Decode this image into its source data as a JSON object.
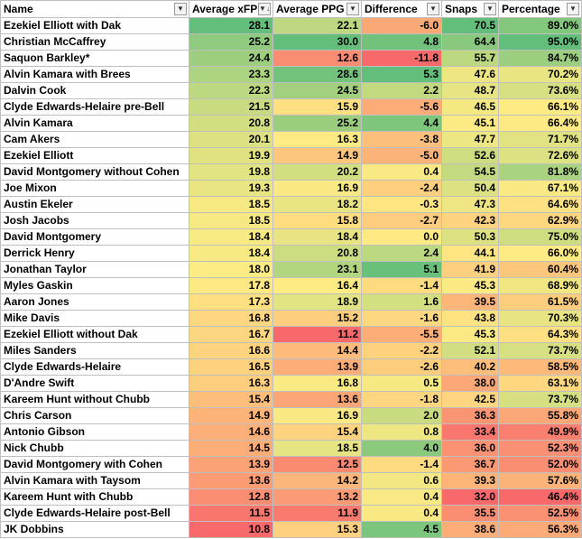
{
  "headers": [
    "Name",
    "Average xFP",
    "Average PPG",
    "Difference",
    "Snaps",
    "Percentage"
  ],
  "filter_icons": [
    "filter-dropdown-icon",
    "sort-descending-filter-icon",
    "filter-dropdown-icon",
    "filter-dropdown-icon",
    "filter-dropdown-icon",
    "filter-dropdown-icon"
  ],
  "color_scale": {
    "low": "#f8696b",
    "mid": "#ffeb84",
    "high": "#63be7b"
  },
  "rows": [
    {
      "name": "Ezekiel Elliott with Dak",
      "xfp": "28.1",
      "ppg": "22.1",
      "diff": "-6.0",
      "snaps": "70.5",
      "pct": "89.0%"
    },
    {
      "name": "Christian McCaffrey",
      "xfp": "25.2",
      "ppg": "30.0",
      "diff": "4.8",
      "snaps": "64.4",
      "pct": "95.0%"
    },
    {
      "name": "Saquon Barkley*",
      "xfp": "24.4",
      "ppg": "12.6",
      "diff": "-11.8",
      "snaps": "55.7",
      "pct": "84.7%"
    },
    {
      "name": "Alvin Kamara with Brees",
      "xfp": "23.3",
      "ppg": "28.6",
      "diff": "5.3",
      "snaps": "47.6",
      "pct": "70.2%"
    },
    {
      "name": "Dalvin Cook",
      "xfp": "22.3",
      "ppg": "24.5",
      "diff": "2.2",
      "snaps": "48.7",
      "pct": "73.6%"
    },
    {
      "name": "Clyde Edwards-Helaire pre-Bell",
      "xfp": "21.5",
      "ppg": "15.9",
      "diff": "-5.6",
      "snaps": "46.5",
      "pct": "66.1%"
    },
    {
      "name": "Alvin Kamara",
      "xfp": "20.8",
      "ppg": "25.2",
      "diff": "4.4",
      "snaps": "45.1",
      "pct": "66.4%"
    },
    {
      "name": "Cam Akers",
      "xfp": "20.1",
      "ppg": "16.3",
      "diff": "-3.8",
      "snaps": "47.7",
      "pct": "71.7%"
    },
    {
      "name": "Ezekiel Elliott",
      "xfp": "19.9",
      "ppg": "14.9",
      "diff": "-5.0",
      "snaps": "52.6",
      "pct": "72.6%"
    },
    {
      "name": "David Montgomery without Cohen",
      "xfp": "19.8",
      "ppg": "20.2",
      "diff": "0.4",
      "snaps": "54.5",
      "pct": "81.8%"
    },
    {
      "name": "Joe Mixon",
      "xfp": "19.3",
      "ppg": "16.9",
      "diff": "-2.4",
      "snaps": "50.4",
      "pct": "67.1%"
    },
    {
      "name": "Austin Ekeler",
      "xfp": "18.5",
      "ppg": "18.2",
      "diff": "-0.3",
      "snaps": "47.3",
      "pct": "64.6%"
    },
    {
      "name": "Josh Jacobs",
      "xfp": "18.5",
      "ppg": "15.8",
      "diff": "-2.7",
      "snaps": "42.3",
      "pct": "62.9%"
    },
    {
      "name": "David Montgomery",
      "xfp": "18.4",
      "ppg": "18.4",
      "diff": "0.0",
      "snaps": "50.3",
      "pct": "75.0%"
    },
    {
      "name": "Derrick Henry",
      "xfp": "18.4",
      "ppg": "20.8",
      "diff": "2.4",
      "snaps": "44.1",
      "pct": "66.0%"
    },
    {
      "name": "Jonathan Taylor",
      "xfp": "18.0",
      "ppg": "23.1",
      "diff": "5.1",
      "snaps": "41.9",
      "pct": "60.4%"
    },
    {
      "name": "Myles Gaskin",
      "xfp": "17.8",
      "ppg": "16.4",
      "diff": "-1.4",
      "snaps": "45.3",
      "pct": "68.9%"
    },
    {
      "name": "Aaron Jones",
      "xfp": "17.3",
      "ppg": "18.9",
      "diff": "1.6",
      "snaps": "39.5",
      "pct": "61.5%"
    },
    {
      "name": "Mike Davis",
      "xfp": "16.8",
      "ppg": "15.2",
      "diff": "-1.6",
      "snaps": "43.8",
      "pct": "70.3%"
    },
    {
      "name": "Ezekiel Elliott without Dak",
      "xfp": "16.7",
      "ppg": "11.2",
      "diff": "-5.5",
      "snaps": "45.3",
      "pct": "64.3%"
    },
    {
      "name": "Miles Sanders",
      "xfp": "16.6",
      "ppg": "14.4",
      "diff": "-2.2",
      "snaps": "52.1",
      "pct": "73.7%"
    },
    {
      "name": "Clyde Edwards-Helaire",
      "xfp": "16.5",
      "ppg": "13.9",
      "diff": "-2.6",
      "snaps": "40.2",
      "pct": "58.5%"
    },
    {
      "name": "D'Andre Swift",
      "xfp": "16.3",
      "ppg": "16.8",
      "diff": "0.5",
      "snaps": "38.0",
      "pct": "63.1%"
    },
    {
      "name": "Kareem Hunt without Chubb",
      "xfp": "15.4",
      "ppg": "13.6",
      "diff": "-1.8",
      "snaps": "42.5",
      "pct": "73.7%"
    },
    {
      "name": "Chris Carson",
      "xfp": "14.9",
      "ppg": "16.9",
      "diff": "2.0",
      "snaps": "36.3",
      "pct": "55.8%"
    },
    {
      "name": "Antonio Gibson",
      "xfp": "14.6",
      "ppg": "15.4",
      "diff": "0.8",
      "snaps": "33.4",
      "pct": "49.9%"
    },
    {
      "name": "Nick Chubb",
      "xfp": "14.5",
      "ppg": "18.5",
      "diff": "4.0",
      "snaps": "36.0",
      "pct": "52.3%"
    },
    {
      "name": "David Montgomery with Cohen",
      "xfp": "13.9",
      "ppg": "12.5",
      "diff": "-1.4",
      "snaps": "36.7",
      "pct": "52.0%"
    },
    {
      "name": "Alvin Kamara with Taysom",
      "xfp": "13.6",
      "ppg": "14.2",
      "diff": "0.6",
      "snaps": "39.3",
      "pct": "57.6%"
    },
    {
      "name": "Kareem Hunt with Chubb",
      "xfp": "12.8",
      "ppg": "13.2",
      "diff": "0.4",
      "snaps": "32.0",
      "pct": "46.4%"
    },
    {
      "name": "Clyde Edwards-Helaire post-Bell",
      "xfp": "11.5",
      "ppg": "11.9",
      "diff": "0.4",
      "snaps": "35.5",
      "pct": "52.5%"
    },
    {
      "name": "JK Dobbins",
      "xfp": "10.8",
      "ppg": "15.3",
      "diff": "4.5",
      "snaps": "38.6",
      "pct": "56.3%"
    }
  ]
}
